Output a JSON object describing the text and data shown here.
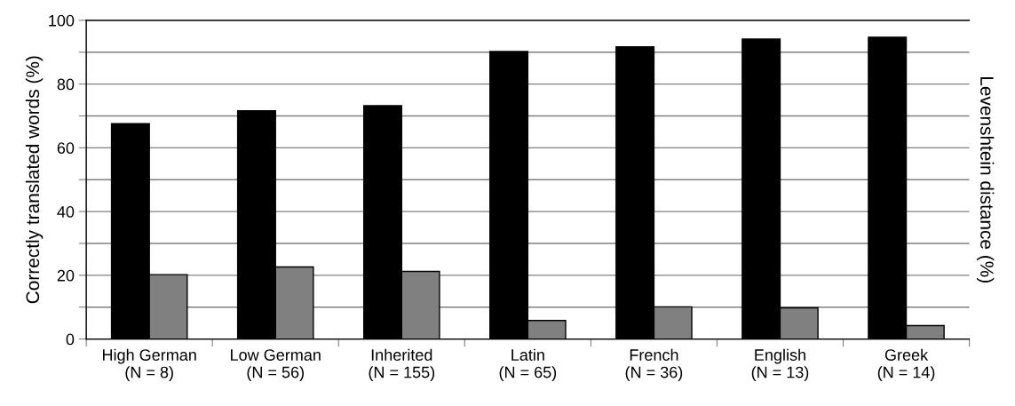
{
  "chart_data": {
    "type": "bar",
    "ylabel": "Correctly translated words (%)",
    "y2label": "Levenshtein distance (%)",
    "categories": [
      "High German\n(N = 8)",
      "Low German\n(N = 56)",
      "Inherited\n(N = 155)",
      "Latin\n(N = 65)",
      "French\n(N = 36)",
      "English\n(N = 13)",
      "Greek\n(N = 14)"
    ],
    "series": [
      {
        "color": "#000000",
        "values": [
          67.6,
          71.6,
          73.2,
          90.2,
          91.7,
          94.1,
          94.7
        ]
      },
      {
        "color": "#808080",
        "values": [
          20.2,
          22.6,
          21.2,
          5.8,
          10.1,
          9.8,
          4.2
        ]
      }
    ],
    "ylim": [
      0,
      100
    ],
    "yticks": [
      0,
      {
        "value": 10,
        "label": null
      },
      20,
      {
        "value": 30,
        "label": null
      },
      40,
      {
        "value": 50,
        "label": null
      },
      60,
      {
        "value": 70,
        "label": null
      },
      80,
      {
        "value": 90,
        "label": null
      },
      100
    ],
    "grid": "y",
    "legend": false
  }
}
